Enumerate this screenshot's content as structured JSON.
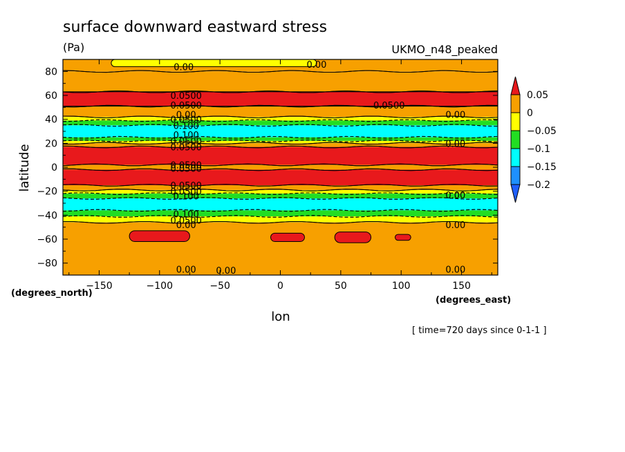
{
  "title": "surface downward eastward stress",
  "units": "(Pa)",
  "dataset": "UKMO_n48_peaked",
  "time_note": "[ time=720 days since 0-1-1 ]",
  "chart_data": {
    "type": "heatmap",
    "xlabel": "lon",
    "ylabel": "latitude",
    "x_units": "(degrees_east)",
    "y_units": "(degrees_north)",
    "xlim": [
      -180,
      180
    ],
    "ylim": [
      -90,
      90
    ],
    "x_ticks": [
      -150,
      -100,
      -50,
      0,
      50,
      100,
      150
    ],
    "y_ticks": [
      80,
      60,
      40,
      20,
      0,
      -20,
      -40,
      -60,
      -80
    ],
    "colorbar": {
      "levels": [
        0.05,
        0,
        -0.05,
        -0.1,
        -0.15,
        -0.2
      ],
      "labels": [
        "0.05",
        "0",
        "−0.05",
        "−0.1",
        "−0.15",
        "−0.2"
      ],
      "colors": [
        "#e8191c",
        "#f7a000",
        "#ffff00",
        "#22dd22",
        "#00ffff",
        "#1e90ff",
        "#2060ff"
      ]
    },
    "zonal_bands": [
      {
        "lat": [
          80,
          90
        ],
        "color": "#f7a000"
      },
      {
        "lat": [
          63,
          80
        ],
        "color": "#f7a000"
      },
      {
        "lat": [
          51,
          63
        ],
        "color": "#e8191c"
      },
      {
        "lat": [
          42,
          51
        ],
        "color": "#f7a000"
      },
      {
        "lat": [
          39,
          42
        ],
        "color": "#ffff00"
      },
      {
        "lat": [
          35,
          39
        ],
        "color": "#22dd22"
      },
      {
        "lat": [
          25,
          35
        ],
        "color": "#00ffff"
      },
      {
        "lat": [
          22,
          25
        ],
        "color": "#22dd22"
      },
      {
        "lat": [
          20,
          22
        ],
        "color": "#ffff00"
      },
      {
        "lat": [
          17,
          20
        ],
        "color": "#f7a000"
      },
      {
        "lat": [
          2,
          17
        ],
        "color": "#e8191c"
      },
      {
        "lat": [
          -2,
          2
        ],
        "color": "#f7a000"
      },
      {
        "lat": [
          -15,
          -2
        ],
        "color": "#e8191c"
      },
      {
        "lat": [
          -19,
          -15
        ],
        "color": "#f7a000"
      },
      {
        "lat": [
          -22,
          -19
        ],
        "color": "#ffff00"
      },
      {
        "lat": [
          -26,
          -22
        ],
        "color": "#22dd22"
      },
      {
        "lat": [
          -36,
          -26
        ],
        "color": "#00ffff"
      },
      {
        "lat": [
          -41,
          -36
        ],
        "color": "#22dd22"
      },
      {
        "lat": [
          -46,
          -41
        ],
        "color": "#ffff00"
      },
      {
        "lat": [
          -90,
          -46
        ],
        "color": "#f7a000"
      }
    ],
    "patches": [
      {
        "lon": [
          -180,
          180
        ],
        "lat": [
          51,
          63
        ],
        "color": "#e8191c",
        "label": "0.0500"
      },
      {
        "lon": [
          -125,
          -75
        ],
        "lat": [
          -62,
          -53
        ],
        "color": "#e8191c"
      },
      {
        "lon": [
          -8,
          20
        ],
        "lat": [
          -62,
          -55
        ],
        "color": "#e8191c"
      },
      {
        "lon": [
          45,
          75
        ],
        "lat": [
          -63,
          -54
        ],
        "color": "#e8191c"
      },
      {
        "lon": [
          95,
          108
        ],
        "lat": [
          -61,
          -56
        ],
        "color": "#e8191c"
      },
      {
        "lon": [
          -140,
          30
        ],
        "lat": [
          84,
          90
        ],
        "color": "#ffff00"
      }
    ],
    "contour_labels": [
      {
        "lon": -80,
        "lat": 84,
        "text": "0.00"
      },
      {
        "lon": 30,
        "lat": 86,
        "text": "0.00"
      },
      {
        "lon": -78,
        "lat": 60,
        "text": "0.0500"
      },
      {
        "lon": -78,
        "lat": 52,
        "text": "0.0500"
      },
      {
        "lon": 90,
        "lat": 52,
        "text": "0.0500"
      },
      {
        "lon": -78,
        "lat": 44,
        "text": "0.00"
      },
      {
        "lon": -78,
        "lat": 40,
        "text": "0.0500"
      },
      {
        "lon": -78,
        "lat": 35,
        "text": "0.100"
      },
      {
        "lon": 145,
        "lat": 44,
        "text": "0.00"
      },
      {
        "lon": -78,
        "lat": 27,
        "text": "0.100"
      },
      {
        "lon": -78,
        "lat": 22,
        "text": "0.0500"
      },
      {
        "lon": -78,
        "lat": 17,
        "text": "0.0500"
      },
      {
        "lon": 145,
        "lat": 20,
        "text": "0.00"
      },
      {
        "lon": -78,
        "lat": 2,
        "text": "0.0500"
      },
      {
        "lon": -78,
        "lat": -1,
        "text": "0.0500"
      },
      {
        "lon": -78,
        "lat": -15,
        "text": "0.0500"
      },
      {
        "lon": -78,
        "lat": -20,
        "text": "0.0500"
      },
      {
        "lon": -78,
        "lat": -24,
        "text": "0.100"
      },
      {
        "lon": 145,
        "lat": -23,
        "text": "0.00"
      },
      {
        "lon": -78,
        "lat": -39,
        "text": "0.100"
      },
      {
        "lon": -78,
        "lat": -44,
        "text": "0.0500"
      },
      {
        "lon": -78,
        "lat": -48,
        "text": "0.00"
      },
      {
        "lon": 145,
        "lat": -48,
        "text": "0.00"
      },
      {
        "lon": -78,
        "lat": -85,
        "text": "0.00"
      },
      {
        "lon": -45,
        "lat": -86,
        "text": "0.00"
      },
      {
        "lon": 145,
        "lat": -85,
        "text": "0.00"
      }
    ]
  }
}
